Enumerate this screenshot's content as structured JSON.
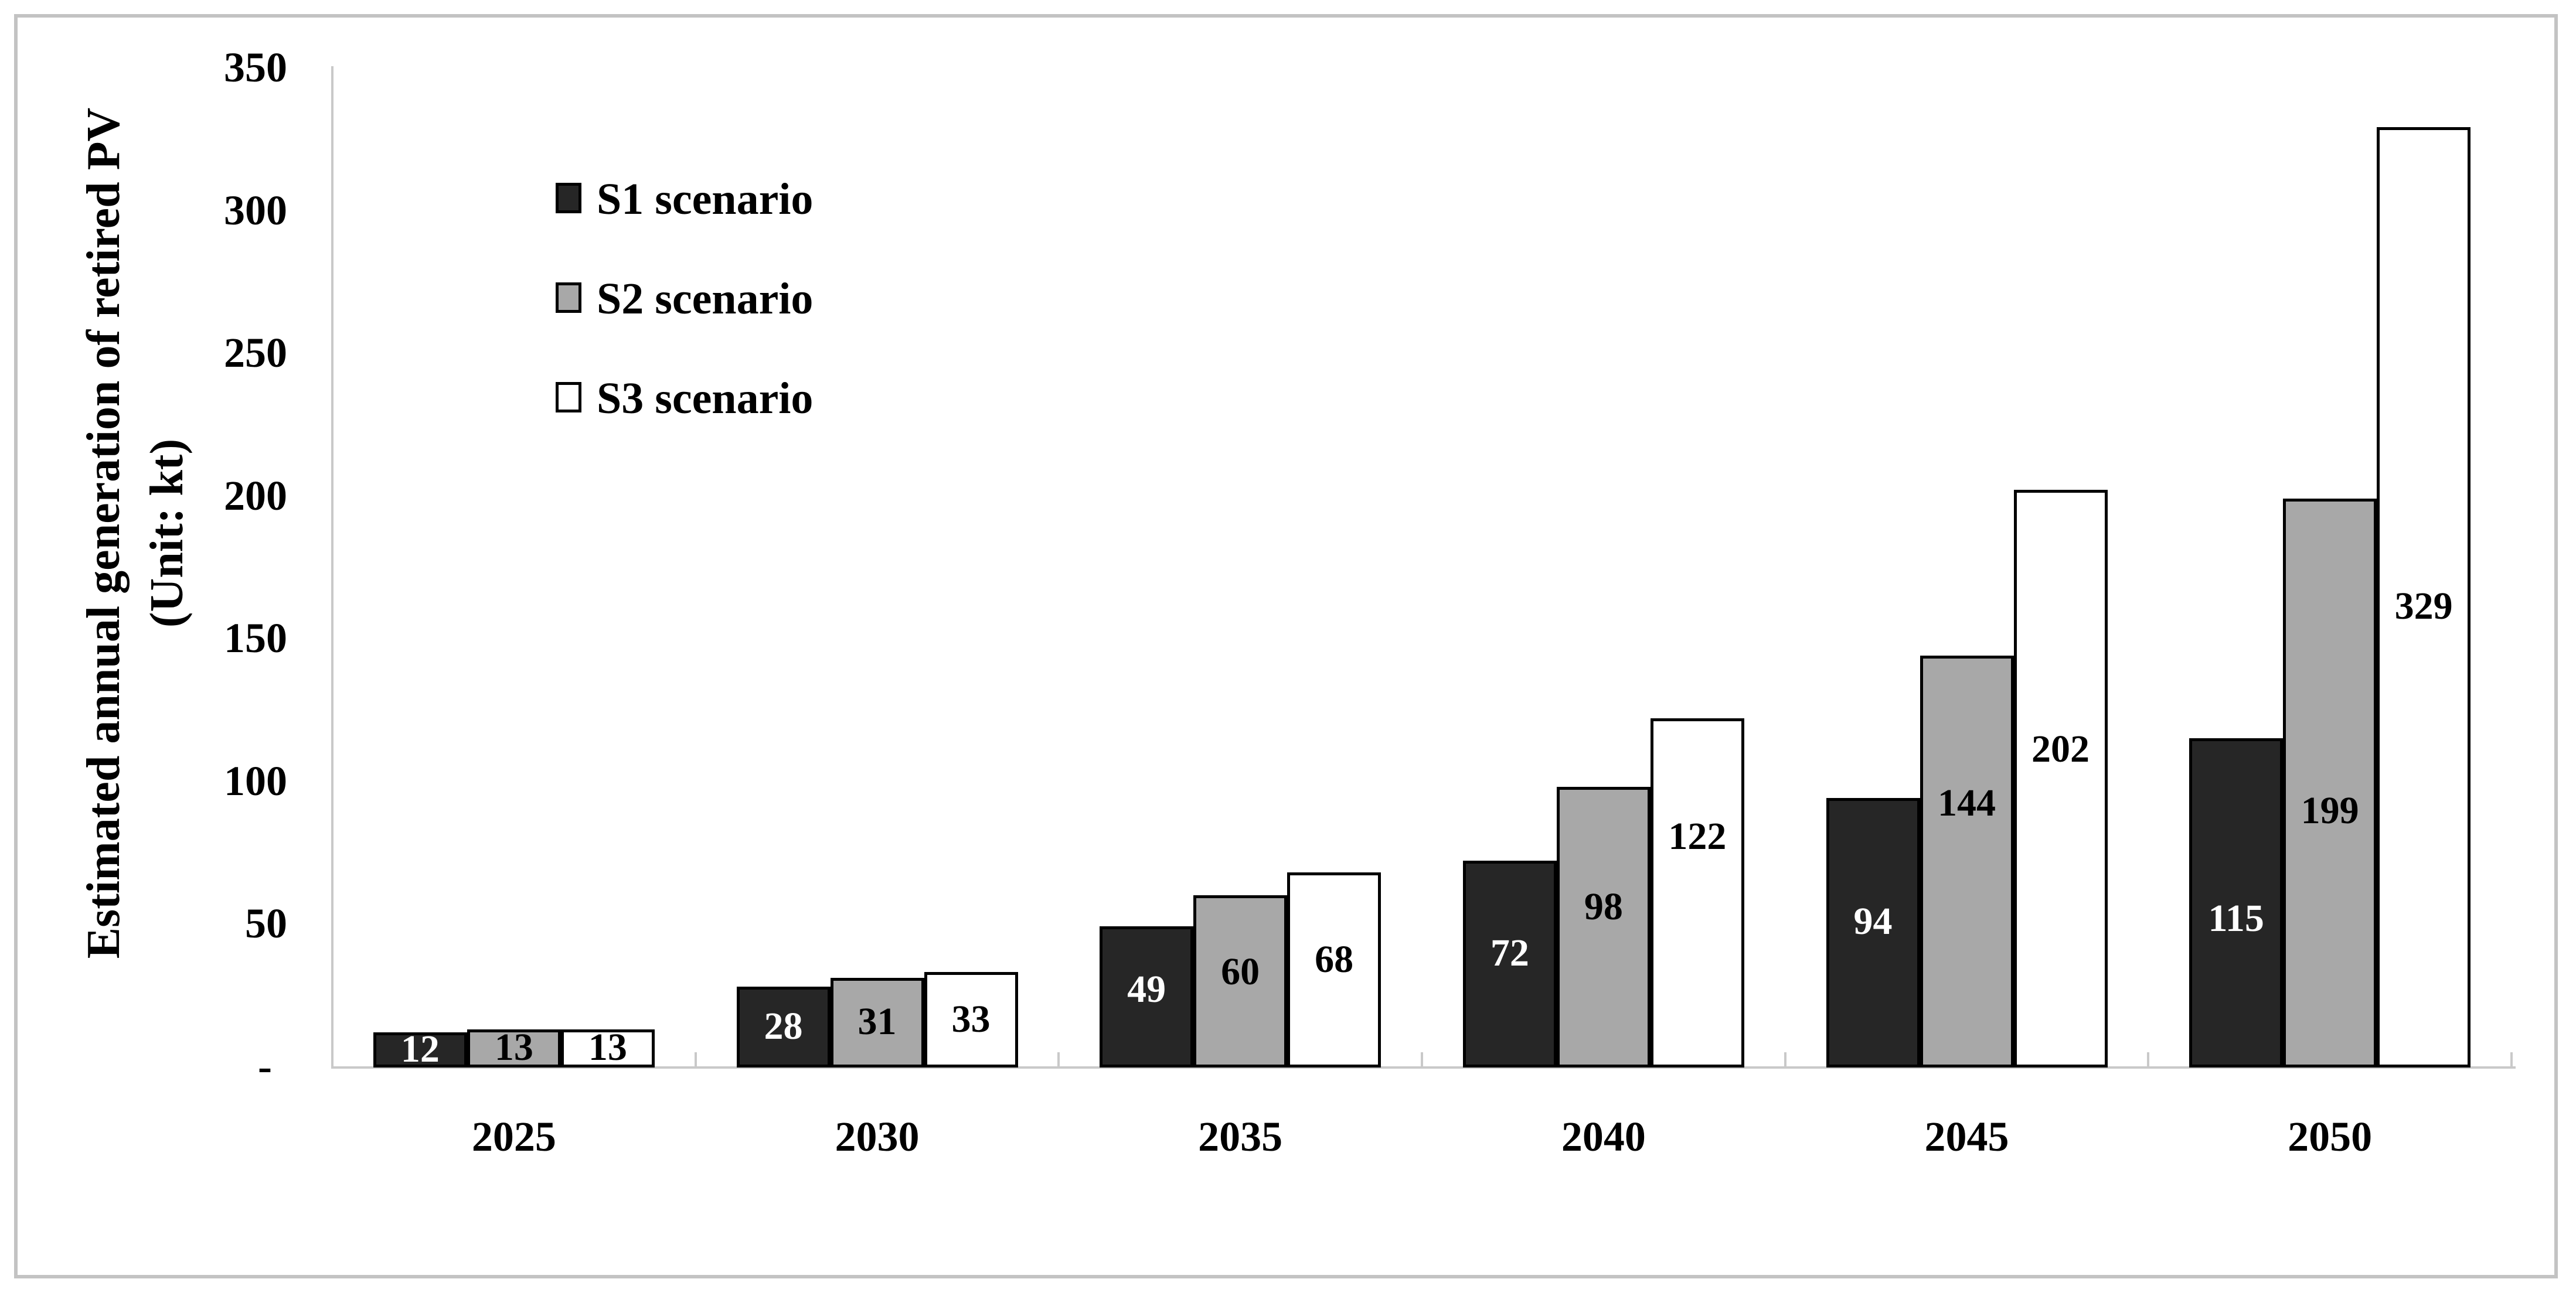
{
  "chart_data": {
    "type": "bar",
    "title": "",
    "categories": [
      "2025",
      "2030",
      "2035",
      "2040",
      "2045",
      "2050"
    ],
    "series": [
      {
        "name": "S1 scenario",
        "color": "#262626",
        "label_color": "#ffffff",
        "values": [
          12,
          28,
          49,
          72,
          94,
          115
        ]
      },
      {
        "name": "S2 scenario",
        "color": "#a8a8a8",
        "label_color": "#000000",
        "values": [
          13,
          31,
          60,
          98,
          144,
          199
        ]
      },
      {
        "name": "S3 scenario",
        "color": "#ffffff",
        "label_color": "#000000",
        "values": [
          13,
          33,
          68,
          122,
          202,
          329
        ]
      }
    ],
    "ylabel_line1": "Estimated annual generation of retired PV",
    "ylabel_line2": "(Unit: kt)",
    "xlabel": "",
    "y_ticks": [
      "350",
      "300",
      "250",
      "200",
      "150",
      "100",
      "50",
      "-"
    ],
    "y_tick_values": [
      350,
      300,
      250,
      200,
      150,
      100,
      50,
      0
    ],
    "ylim": [
      0,
      350
    ],
    "grid": false,
    "legend_position": "inside-upper-left",
    "axis_color": "#c9c9c9",
    "bar_border_color": "#000000"
  }
}
